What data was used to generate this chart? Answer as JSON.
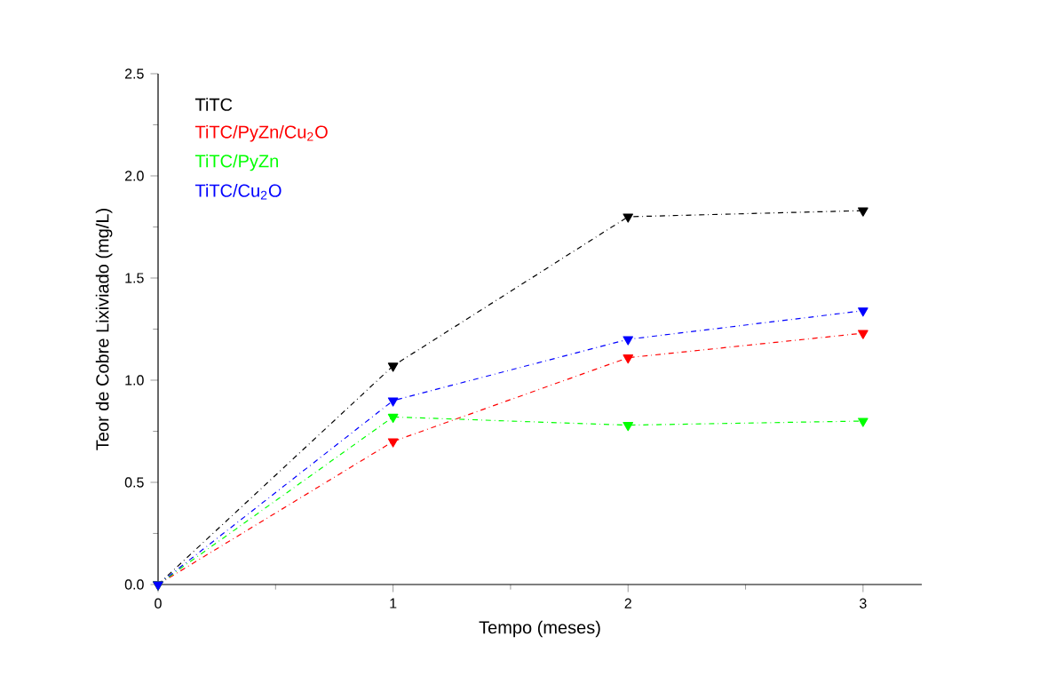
{
  "chart_data": {
    "type": "line",
    "xlabel": "Tempo (meses)",
    "ylabel": "Teor de Cobre Lixiviado (mg/L)",
    "x": [
      0,
      1,
      2,
      3
    ],
    "xlim": [
      0,
      3.25
    ],
    "ylim": [
      0,
      2.5
    ],
    "xticks": [
      0,
      1,
      2,
      3
    ],
    "yticks": [
      {
        "value": 0,
        "label": "0.0"
      },
      {
        "value": 0.5,
        "label": "0.5"
      },
      {
        "value": 1.0,
        "label": "1.0"
      },
      {
        "value": 1.5,
        "label": "1.5"
      },
      {
        "value": 2.0,
        "label": "2.0"
      },
      {
        "value": 2.5,
        "label": "2.5"
      }
    ],
    "marker": "triangle",
    "line_style": "dashed",
    "legend": "top left",
    "grid": false,
    "series": [
      {
        "name": "TiTC",
        "color": "#000000",
        "values": [
          0,
          1.07,
          1.8,
          1.83
        ]
      },
      {
        "name": "TiTC/PyZn/Cu$_{2}$O",
        "color": "#ff0000",
        "values": [
          0,
          0.7,
          1.11,
          1.23
        ]
      },
      {
        "name": "TiTC/PyZn",
        "color": "#00ff00",
        "values": [
          0,
          0.82,
          0.78,
          0.8
        ]
      },
      {
        "name": "TiTC/Cu$_{2}$O",
        "color": "#0000ff",
        "values": [
          0,
          0.9,
          1.2,
          1.34
        ]
      }
    ]
  }
}
